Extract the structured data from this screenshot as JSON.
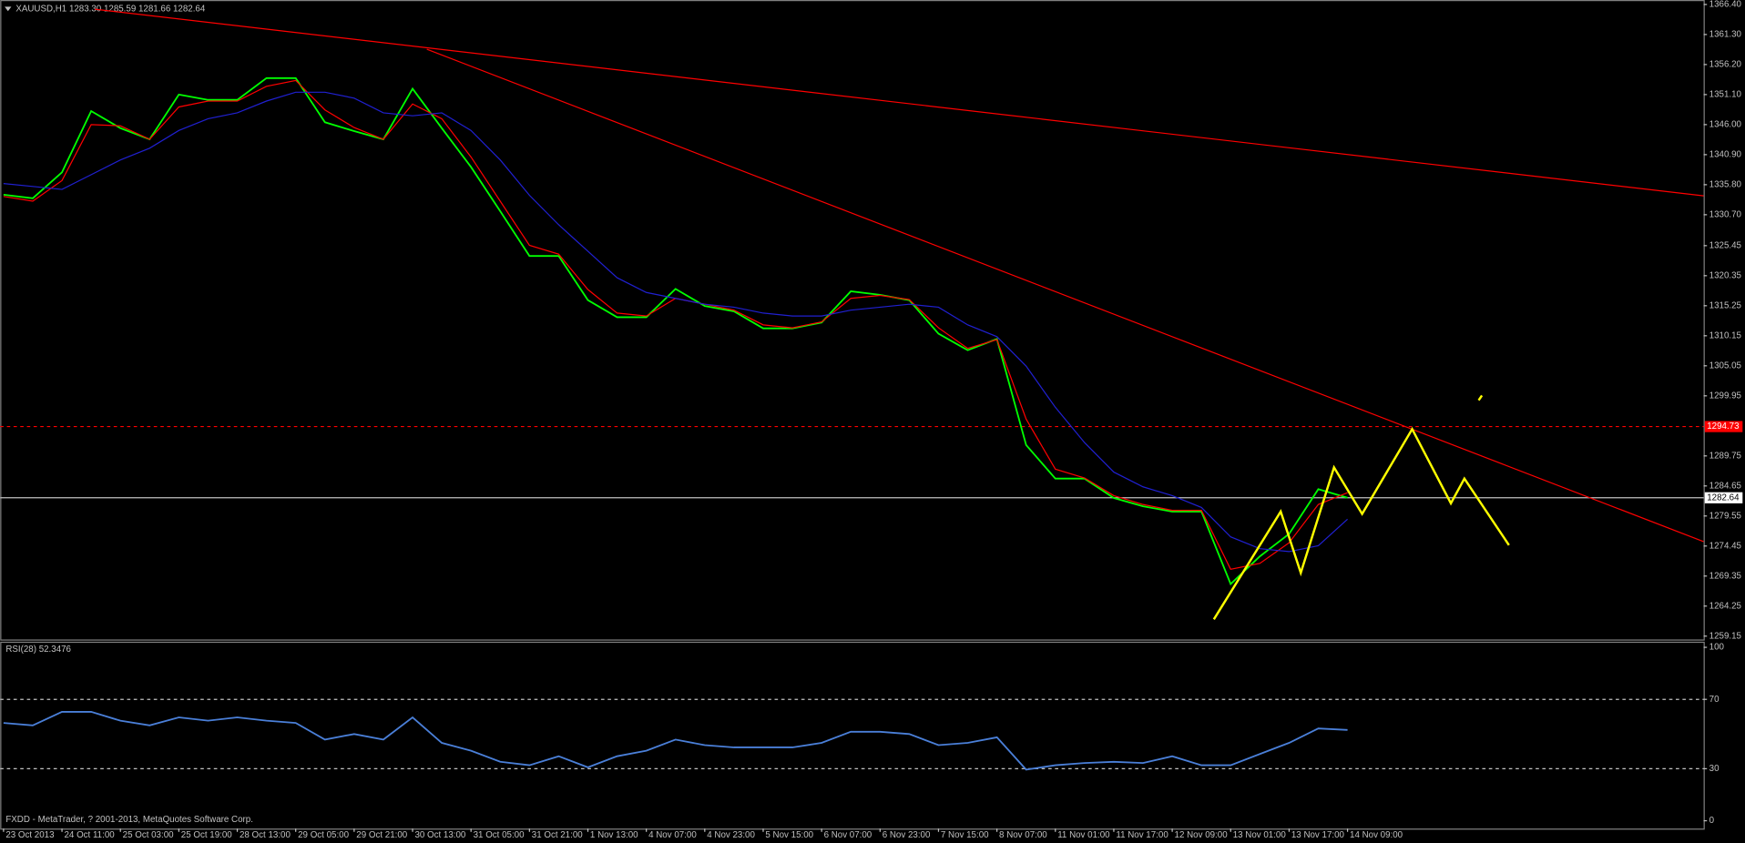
{
  "chart_data": [
    {
      "type": "line",
      "title": "XAUUSD,H1  1283.30 1285.59 1281.66 1282.64",
      "xlim": [
        -0.91,
        465.5
      ],
      "ylim": [
        1258.58,
        1367.16
      ],
      "yticks": [
        {
          "value": 1366.4,
          "label": "1366.40"
        },
        {
          "value": 1361.3,
          "label": "1361.30"
        },
        {
          "value": 1356.2,
          "label": "1356.20"
        },
        {
          "value": 1351.1,
          "label": "1351.10"
        },
        {
          "value": 1346,
          "label": "1346.00"
        },
        {
          "value": 1340.9,
          "label": "1340.90"
        },
        {
          "value": 1335.8,
          "label": "1335.80"
        },
        {
          "value": 1330.7,
          "label": "1330.70"
        },
        {
          "value": 1325.45,
          "label": "1325.45"
        },
        {
          "value": 1320.35,
          "label": "1320.35"
        },
        {
          "value": 1315.25,
          "label": "1315.25"
        },
        {
          "value": 1310.15,
          "label": "1310.15"
        },
        {
          "value": 1305.05,
          "label": "1305.05"
        },
        {
          "value": 1299.95,
          "label": "1299.95"
        },
        {
          "value": 1289.75,
          "label": "1289.75"
        },
        {
          "value": 1284.65,
          "label": "1284.65"
        },
        {
          "value": 1279.55,
          "label": "1279.55"
        },
        {
          "value": 1274.45,
          "label": "1274.45"
        },
        {
          "value": 1269.35,
          "label": "1269.35"
        },
        {
          "value": 1264.25,
          "label": "1264.25"
        },
        {
          "value": 1259.15,
          "label": "1259.15"
        }
      ],
      "x": [
        0,
        8,
        16,
        24,
        32,
        40,
        48,
        56,
        64,
        72,
        80,
        88,
        96,
        104,
        112,
        120,
        128,
        136,
        144,
        152,
        160,
        168,
        176,
        184,
        192,
        200,
        208,
        216,
        224,
        232,
        240,
        248,
        256,
        264,
        272,
        280,
        288,
        296,
        304,
        312,
        320,
        328,
        336,
        344,
        352,
        360,
        368
      ],
      "series": [
        {
          "color": "#00ff00",
          "values": [
            1334.1,
            1333.5,
            1337.9,
            1348.3,
            1345.4,
            1343.5,
            1351.1,
            1350.2,
            1350.2,
            1353.9,
            1353.9,
            1346.4,
            1344.9,
            1343.5,
            1352.1,
            1345.4,
            1338.8,
            1331.3,
            1323.7,
            1323.7,
            1316.2,
            1313.3,
            1313.3,
            1318.1,
            1315.2,
            1314.3,
            1311.4,
            1311.4,
            1312.4,
            1317.7,
            1317.1,
            1316.2,
            1310.5,
            1307.7,
            1309.6,
            1291.6,
            1285.9,
            1285.9,
            1282.6,
            1281.2,
            1280.3,
            1280.3,
            1268.0,
            1272.7,
            1276.5,
            1284.1,
            1282.64
          ]
        },
        {
          "color": "#ff0000",
          "values": [
            1333.8,
            1333.0,
            1336.5,
            1346.0,
            1345.8,
            1343.5,
            1349.0,
            1350.0,
            1350.0,
            1352.5,
            1353.5,
            1348.5,
            1345.5,
            1343.5,
            1349.5,
            1347.0,
            1340.5,
            1333.0,
            1325.5,
            1324.0,
            1318.0,
            1314.0,
            1313.5,
            1316.5,
            1315.5,
            1314.5,
            1312.0,
            1311.5,
            1312.5,
            1316.5,
            1317.0,
            1316.3,
            1311.5,
            1308.0,
            1309.5,
            1296.0,
            1287.5,
            1286.0,
            1283.0,
            1281.5,
            1280.5,
            1280.5,
            1270.5,
            1271.5,
            1275.0,
            1281.5,
            1283.5
          ]
        },
        {
          "color": "#2020d0",
          "values": [
            1336.0,
            1335.5,
            1335.0,
            1337.5,
            1340.0,
            1342.0,
            1345.0,
            1347.0,
            1348.0,
            1350.0,
            1351.5,
            1351.5,
            1350.5,
            1348.0,
            1347.5,
            1348.0,
            1345.0,
            1340.0,
            1334.0,
            1329.0,
            1324.5,
            1320.0,
            1317.5,
            1316.5,
            1315.5,
            1315.0,
            1314.0,
            1313.5,
            1313.5,
            1314.5,
            1315.0,
            1315.5,
            1315.0,
            1312.0,
            1310.0,
            1305.0,
            1298.0,
            1292.0,
            1287.0,
            1284.5,
            1283.0,
            1281.0,
            1276.0,
            1274.0,
            1273.5,
            1274.5,
            1279.0
          ]
        }
      ],
      "trendlines": [
        {
          "color": "#ff0000",
          "x": [
            25,
            465.5
          ],
          "values": [
            1365.6,
            1333.9
          ]
        },
        {
          "color": "#ff0000",
          "x": [
            115.9,
            465.5
          ],
          "values": [
            1358.8,
            1275.2
          ]
        }
      ],
      "drawings": [
        {
          "color": "#ffff00",
          "x": [
            331.4,
            349.7,
            355.2,
            364.3,
            372.0,
            385.7,
            396.3,
            400.0,
            412.2
          ],
          "values": [
            1262.0,
            1280.3,
            1269.9,
            1287.8,
            1279.9,
            1294.3,
            1281.7,
            1285.9,
            1274.6
          ]
        },
        {
          "color": "#ffff00",
          "x": [
            403.9,
            404.8
          ],
          "values": [
            1299.2,
            1300.0
          ]
        }
      ],
      "levels": [
        {
          "value": 1294.73,
          "label": "1294.73",
          "color": "#ff0000",
          "dashed": true
        },
        {
          "value": 1282.64,
          "label": "1282.64",
          "color": "#c0c0c0",
          "dashed": false
        }
      ]
    },
    {
      "type": "line",
      "title": "RSI(28) 52.3476",
      "xlim": [
        -0.91,
        465.5
      ],
      "ylim": [
        -4.5,
        102.6
      ],
      "yticks": [
        100,
        70,
        30,
        0
      ],
      "levels": [
        70,
        30
      ],
      "xticks": [
        {
          "value": 0,
          "label": "23 Oct 2013"
        },
        {
          "value": 16,
          "label": "24 Oct 11:00"
        },
        {
          "value": 32,
          "label": "25 Oct 03:00"
        },
        {
          "value": 48,
          "label": "25 Oct 19:00"
        },
        {
          "value": 64,
          "label": "28 Oct 13:00"
        },
        {
          "value": 80,
          "label": "29 Oct 05:00"
        },
        {
          "value": 96,
          "label": "29 Oct 21:00"
        },
        {
          "value": 112,
          "label": "30 Oct 13:00"
        },
        {
          "value": 128,
          "label": "31 Oct 05:00"
        },
        {
          "value": 144,
          "label": "31 Oct 21:00"
        },
        {
          "value": 160,
          "label": "1 Nov 13:00"
        },
        {
          "value": 176,
          "label": "4 Nov 07:00"
        },
        {
          "value": 192,
          "label": "4 Nov 23:00"
        },
        {
          "value": 208,
          "label": "5 Nov 15:00"
        },
        {
          "value": 224,
          "label": "6 Nov 07:00"
        },
        {
          "value": 240,
          "label": "6 Nov 23:00"
        },
        {
          "value": 256,
          "label": "7 Nov 15:00"
        },
        {
          "value": 272,
          "label": "8 Nov 07:00"
        },
        {
          "value": 288,
          "label": "11 Nov 01:00"
        },
        {
          "value": 304,
          "label": "11 Nov 17:00"
        },
        {
          "value": 320,
          "label": "12 Nov 09:00"
        },
        {
          "value": 336,
          "label": "13 Nov 01:00"
        },
        {
          "value": 352,
          "label": "13 Nov 17:00"
        },
        {
          "value": 368,
          "label": "14 Nov 09:00"
        }
      ],
      "x": [
        0,
        8,
        16,
        24,
        32,
        40,
        48,
        56,
        64,
        72,
        80,
        88,
        96,
        104,
        112,
        120,
        128,
        136,
        144,
        152,
        160,
        168,
        176,
        184,
        192,
        200,
        208,
        216,
        224,
        232,
        240,
        248,
        256,
        264,
        272,
        280,
        288,
        296,
        304,
        312,
        320,
        328,
        336,
        344,
        352,
        360,
        368
      ],
      "series": [
        {
          "color": "#4a7fd8",
          "values": [
            56.4,
            55,
            62.8,
            62.8,
            57.7,
            55,
            59.6,
            57.7,
            59.6,
            57.7,
            56.4,
            46.8,
            50,
            46.8,
            59.6,
            44.9,
            40.4,
            34,
            32,
            37.2,
            30.8,
            37.2,
            40.4,
            46.8,
            43.6,
            42.3,
            42.3,
            42.3,
            44.9,
            51.3,
            51.3,
            50,
            43.6,
            44.9,
            48.1,
            29.5,
            32,
            33.3,
            34,
            33.3,
            37.2,
            32,
            32,
            38.5,
            44.9,
            53.2,
            52.3476
          ]
        }
      ]
    }
  ],
  "footer": "FXDD - MetaTrader, ? 2001-2013, MetaQuotes Software Corp."
}
